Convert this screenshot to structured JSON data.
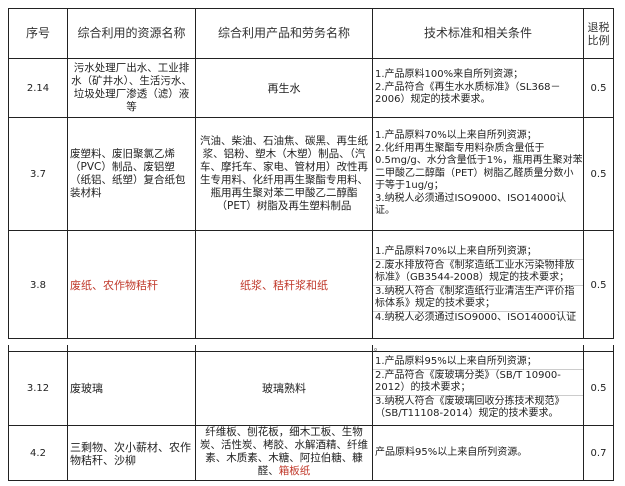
{
  "header": {
    "seq": "序号",
    "resource": "综合利用的资源名称",
    "product": "综合利用产品和劳务名称",
    "standard": "技术标准和相关条件",
    "ratio": "退税比例"
  },
  "rows": [
    {
      "seq": "2.14",
      "resource": "污水处理厂出水、工业排水（矿井水）、生活污水、垃圾处理厂渗透（滤）液等",
      "product": "再生水",
      "standards": [
        "1.产品原料100%来自所列资源；",
        "2.产品符合《再生水水质标准》（SL368－2006）规定的技术要求。"
      ],
      "ratio": "0.5"
    },
    {
      "seq": "3.7",
      "resource": "废塑料、废旧聚氯乙烯（PVC）制品、废铝塑（纸铝、纸塑）复合纸包装材料",
      "product": "汽油、柴油、石油焦、碳黑、再生纸浆、铝粉、塑木（木塑）制品、（汽车、摩托车、家电、管材用）改性再生专用料、化纤用再生聚酯专用料、瓶用再生聚对苯二甲酸乙二醇酯（PET）树脂及再生塑料制品",
      "standards": [
        "1.产品原料70%以上来自所列资源；",
        "2.化纤用再生聚酯专用料杂质含量低于0.5mg/g、水分含量低于1%，瓶用再生聚对苯二甲酸乙二醇酯（PET）树脂乙醛质量分数小于等于1ug/g；",
        "3.纳税人必须通过ISO9000、ISO14000认证。"
      ],
      "ratio": "0.5"
    },
    {
      "seq": "3.8",
      "resource": "废纸、农作物秸秆",
      "product": "纸浆、秸秆浆和纸",
      "standards": [
        "1.产品原料70%以上来自所列资源；",
        "2.废水排放符合《制浆造纸工业水污染物排放标准》（GB3544-2008）规定的技术要求；",
        "3.纳税人符合《制浆造纸行业清洁生产评价指标体系》规定的技术要求；",
        "4.纳税人必须通过ISO9000、ISO14000认证"
      ],
      "continuation": "。",
      "ratio": "0.5"
    },
    {
      "seq": "3.12",
      "resource": "废玻璃",
      "product": "玻璃熟料",
      "standards": [
        "1.产品原料95%以上来自所列资源；",
        "2.产品符合《废玻璃分类》（SB/T 10900-2012）的技术要求；",
        "3.纳税人符合《废玻璃回收分拣技术规范》（SB/T11108-2014）规定的技术要求。"
      ],
      "ratio": "0.5"
    },
    {
      "seq": "4.2",
      "resource": "三剩物、次小薪材、农作物秸秆、沙柳",
      "product": "纤维板、刨花板，细木工板、生物炭、活性炭、栲胶、水解酒精、纤维素、木质素、木糖、阿拉伯糖、糠醛、",
      "product_extra": "箱板纸",
      "standards": [
        "产品原料95%以上来自所列资源。"
      ],
      "ratio": "0.7"
    }
  ],
  "colors": {
    "highlight": "#c0392b"
  }
}
